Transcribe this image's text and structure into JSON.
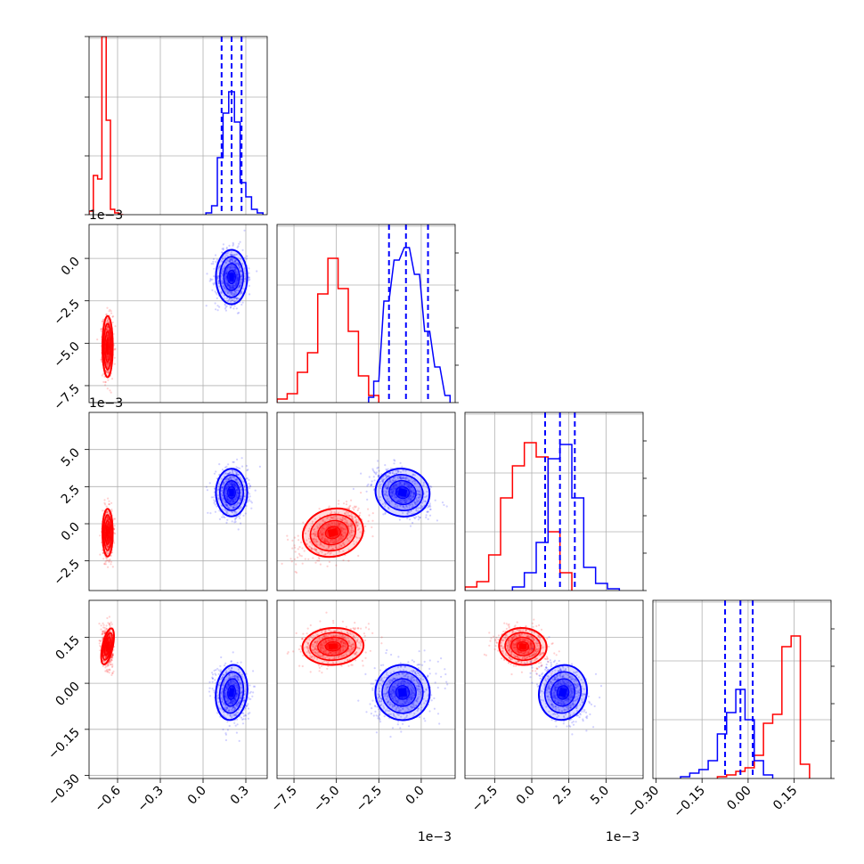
{
  "chart_data": {
    "type": "corner",
    "colors": {
      "series_a": "#ff0000",
      "series_b": "#0000ff"
    },
    "grid": true,
    "parameters": [
      {
        "range": [
          -0.8,
          0.45
        ],
        "ticks": [
          -0.6,
          -0.3,
          0.0,
          0.3
        ],
        "tick_labels": [
          "−0.6",
          "−0.3",
          "0.0",
          "0.3"
        ],
        "scale_label": "",
        "quantiles_b": [
          0.13,
          0.2,
          0.27
        ],
        "hist_a": [
          [
            -0.8,
            0.02
          ],
          [
            -0.77,
            0.22
          ],
          [
            -0.74,
            0.2
          ],
          [
            -0.71,
            1.0
          ],
          [
            -0.68,
            0.53
          ],
          [
            -0.65,
            0.03
          ],
          [
            -0.62,
            0.01
          ],
          [
            -0.59,
            0.0
          ]
        ],
        "hist_b": [
          [
            0.02,
            0.01
          ],
          [
            0.06,
            0.05
          ],
          [
            0.1,
            0.32
          ],
          [
            0.14,
            0.57
          ],
          [
            0.18,
            0.69
          ],
          [
            0.22,
            0.52
          ],
          [
            0.26,
            0.18
          ],
          [
            0.3,
            0.1
          ],
          [
            0.34,
            0.03
          ],
          [
            0.38,
            0.01
          ]
        ]
      },
      {
        "range": [
          -0.0085,
          0.002
        ],
        "ticks": [
          -0.0075,
          -0.005,
          -0.0025,
          0.0
        ],
        "tick_labels": [
          "−7.5",
          "−5.0",
          "−2.5",
          "0.0"
        ],
        "scale_label": "1e−3",
        "quantiles_b": [
          -0.0019,
          -0.0009,
          0.0004
        ],
        "hist_a": [
          [
            -0.0085,
            0.02
          ],
          [
            -0.0079,
            0.05
          ],
          [
            -0.0073,
            0.17
          ],
          [
            -0.0067,
            0.28
          ],
          [
            -0.0061,
            0.61
          ],
          [
            -0.0055,
            0.81
          ],
          [
            -0.0049,
            0.64
          ],
          [
            -0.0043,
            0.4
          ],
          [
            -0.0037,
            0.15
          ],
          [
            -0.0031,
            0.04
          ]
        ],
        "hist_b": [
          [
            -0.0031,
            0.03
          ],
          [
            -0.0028,
            0.12
          ],
          [
            -0.0022,
            0.57
          ],
          [
            -0.0016,
            0.8
          ],
          [
            -0.001,
            0.87
          ],
          [
            -0.0004,
            0.72
          ],
          [
            0.0002,
            0.4
          ],
          [
            0.0008,
            0.2
          ],
          [
            0.0014,
            0.04
          ]
        ]
      },
      {
        "range": [
          -0.0045,
          0.0075
        ],
        "ticks": [
          -0.0025,
          0.0,
          0.0025,
          0.005
        ],
        "tick_labels": [
          "−2.5",
          "0.0",
          "2.5",
          "5.0"
        ],
        "scale_label": "1e−3",
        "quantiles_b": [
          0.0009,
          0.0019,
          0.0029
        ],
        "hist_a": [
          [
            -0.0045,
            0.02
          ],
          [
            -0.0037,
            0.05
          ],
          [
            -0.0029,
            0.2
          ],
          [
            -0.0021,
            0.52
          ],
          [
            -0.0013,
            0.7
          ],
          [
            -0.0005,
            0.83
          ],
          [
            0.0003,
            0.75
          ],
          [
            0.0011,
            0.33
          ],
          [
            0.0019,
            0.1
          ]
        ],
        "hist_b": [
          [
            -0.0013,
            0.02
          ],
          [
            -0.0005,
            0.1
          ],
          [
            0.0003,
            0.27
          ],
          [
            0.0011,
            0.74
          ],
          [
            0.0019,
            0.82
          ],
          [
            0.0027,
            0.52
          ],
          [
            0.0035,
            0.13
          ],
          [
            0.0043,
            0.04
          ],
          [
            0.0051,
            0.01
          ]
        ]
      },
      {
        "range": [
          -0.31,
          0.27
        ],
        "ticks": [
          -0.3,
          -0.15,
          0.0,
          0.15
        ],
        "tick_labels": [
          "−0.30",
          "−0.15",
          "0.00",
          "0.15"
        ],
        "scale_label": "",
        "quantiles_b": [
          -0.075,
          -0.025,
          0.015
        ],
        "hist_a": [
          [
            -0.1,
            0.01
          ],
          [
            -0.07,
            0.02
          ],
          [
            -0.04,
            0.04
          ],
          [
            -0.01,
            0.06
          ],
          [
            0.02,
            0.13
          ],
          [
            0.05,
            0.31
          ],
          [
            0.08,
            0.36
          ],
          [
            0.11,
            0.74
          ],
          [
            0.14,
            0.8
          ],
          [
            0.17,
            0.08
          ]
        ],
        "hist_b": [
          [
            -0.22,
            0.01
          ],
          [
            -0.19,
            0.03
          ],
          [
            -0.16,
            0.05
          ],
          [
            -0.13,
            0.1
          ],
          [
            -0.1,
            0.25
          ],
          [
            -0.07,
            0.37
          ],
          [
            -0.04,
            0.5
          ],
          [
            -0.01,
            0.33
          ],
          [
            0.02,
            0.1
          ],
          [
            0.05,
            0.02
          ]
        ]
      }
    ],
    "clusters": [
      {
        "series": "series_a",
        "mean": [
          -0.67,
          -0.0052,
          -0.0006,
          0.12
        ],
        "sd": [
          0.018,
          0.0009,
          0.0008,
          0.03
        ]
      },
      {
        "series": "series_b",
        "mean": [
          0.2,
          -0.0011,
          0.0021,
          -0.03
        ],
        "sd": [
          0.055,
          0.0008,
          0.0008,
          0.045
        ]
      }
    ],
    "correlations": {
      "series_a": {
        "1-2": 0.55,
        "0-3": -0.1,
        "1-3": 0.15,
        "2-3": -0.2
      },
      "series_b": {
        "1-2": -0.45,
        "0-3": -0.1,
        "1-3": 0.2,
        "2-3": -0.35
      }
    }
  }
}
